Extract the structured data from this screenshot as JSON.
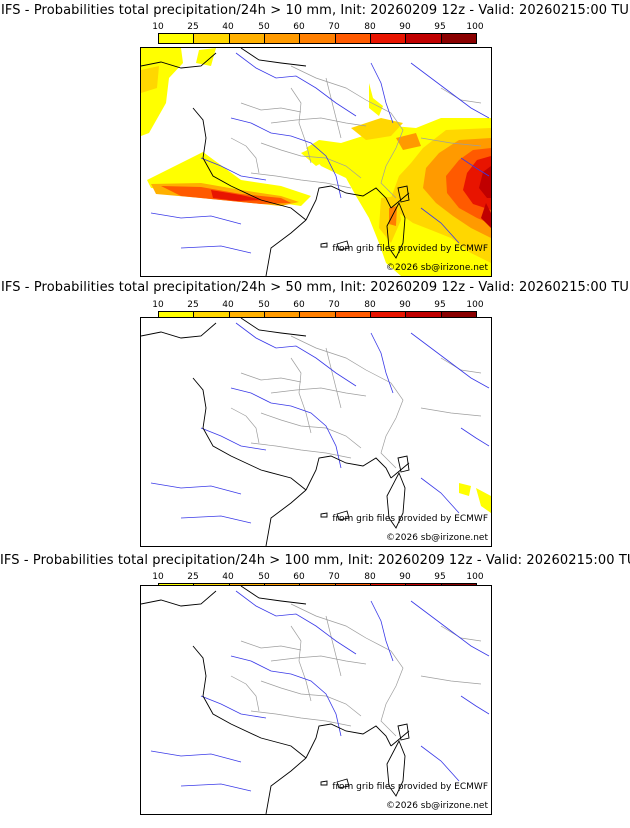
{
  "legend": {
    "ticks": [
      "10",
      "25",
      "40",
      "50",
      "60",
      "70",
      "80",
      "90",
      "95",
      "100"
    ],
    "colors": [
      "#ffff00",
      "#ffd700",
      "#ffb000",
      "#ff9a00",
      "#ff7f00",
      "#ff5a00",
      "#e81400",
      "#c00000",
      "#8a0000",
      "#4d0000"
    ]
  },
  "panels": [
    {
      "title": "IFS - Probabilities total precipitation/24h > 10 mm, Init: 20260209 12z - Valid: 20260215:00 TU",
      "source": "from grib files provided by ECMWF",
      "copyright": "©2026 sb@irizone.net"
    },
    {
      "title": "IFS - Probabilities total precipitation/24h > 50 mm, Init: 20260209 12z - Valid: 20260215:00 TU",
      "source": "from grib files provided by ECMWF",
      "copyright": "©2026 sb@irizone.net"
    },
    {
      "title": "IFS - Probabilities total precipitation/24h > 100 mm, Init: 20260209 12z - Valid: 20260215:00 TU",
      "source": "from grib files provided by ECMWF",
      "copyright": "©2026 sb@irizone.net"
    }
  ]
}
